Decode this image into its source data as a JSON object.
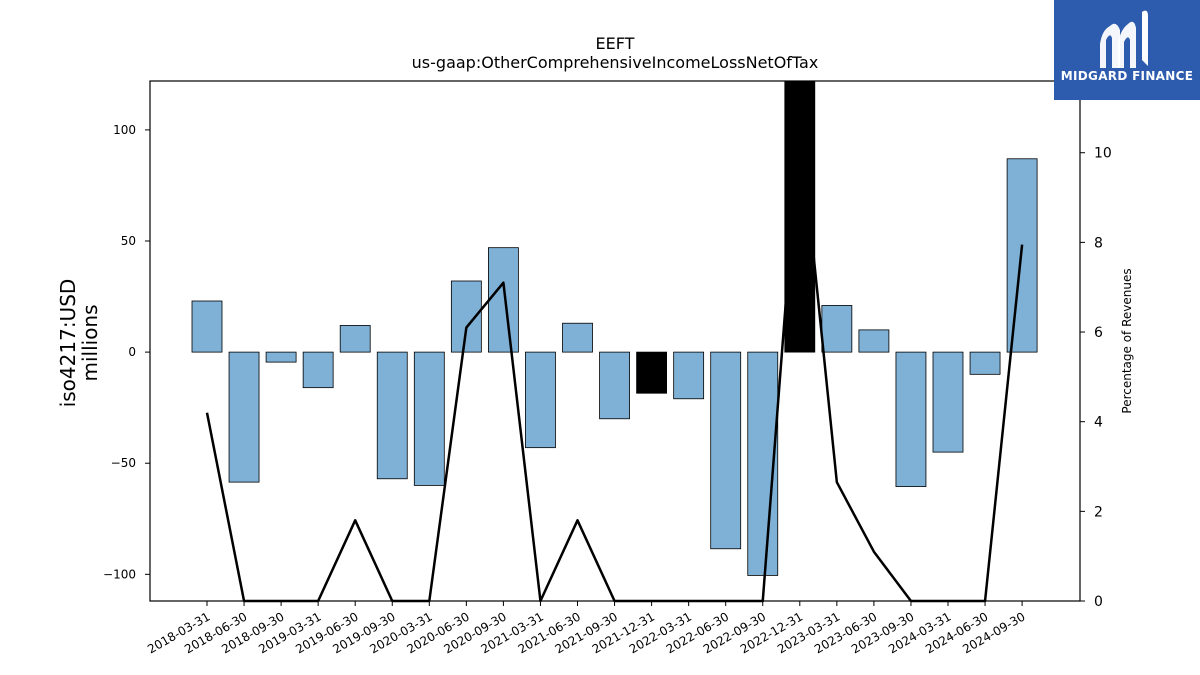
{
  "chart_data": {
    "type": "bar",
    "title": "EEFT",
    "subtitle": "us-gaap:OtherComprehensiveIncomeLossNetOfTax",
    "ylabel": "iso4217:USD\nmillions",
    "ylabel_right": "Percentage of Revenues",
    "ylim": [
      -112,
      122
    ],
    "ylim_right": [
      0,
      11.6
    ],
    "yticks": [
      -100,
      -50,
      0,
      50,
      100
    ],
    "yticks_right": [
      0,
      2,
      4,
      6,
      8,
      10
    ],
    "grid": false,
    "categories": [
      "2018-03-31",
      "2018-06-30",
      "2018-09-30",
      "2019-03-31",
      "2019-06-30",
      "2019-09-30",
      "2020-03-31",
      "2020-06-30",
      "2020-09-30",
      "2021-03-31",
      "2021-06-30",
      "2021-09-30",
      "2021-12-31",
      "2022-03-31",
      "2022-06-30",
      "2022-09-30",
      "2022-12-31",
      "2023-03-31",
      "2023-06-30",
      "2023-09-30",
      "2024-03-31",
      "2024-06-30",
      "2024-09-30"
    ],
    "series": [
      {
        "values": [
          23,
          -58.5,
          -4.5,
          -16,
          12,
          -57,
          -60,
          32,
          47,
          -43,
          13,
          -30,
          -18.5,
          -21,
          -88.5,
          -100.5,
          122,
          21,
          10,
          -60.5,
          -45,
          -10,
          87
        ]
      },
      {
        "values": [
          4.2,
          0,
          0,
          0,
          1.8,
          0,
          0,
          6.1,
          7.1,
          0,
          1.8,
          0,
          0,
          0,
          0,
          0,
          10.7,
          2.65,
          1.1,
          0,
          0,
          0,
          7.95
        ]
      }
    ],
    "bar_color": "#7fb0d5",
    "highlight_color": "#000000",
    "highlight_categories": [
      "2021-12-31",
      "2022-12-31"
    ],
    "line_color": "#000000"
  },
  "logo": {
    "text": "MIDGARD FINANCE",
    "color": "#2d5bad"
  }
}
